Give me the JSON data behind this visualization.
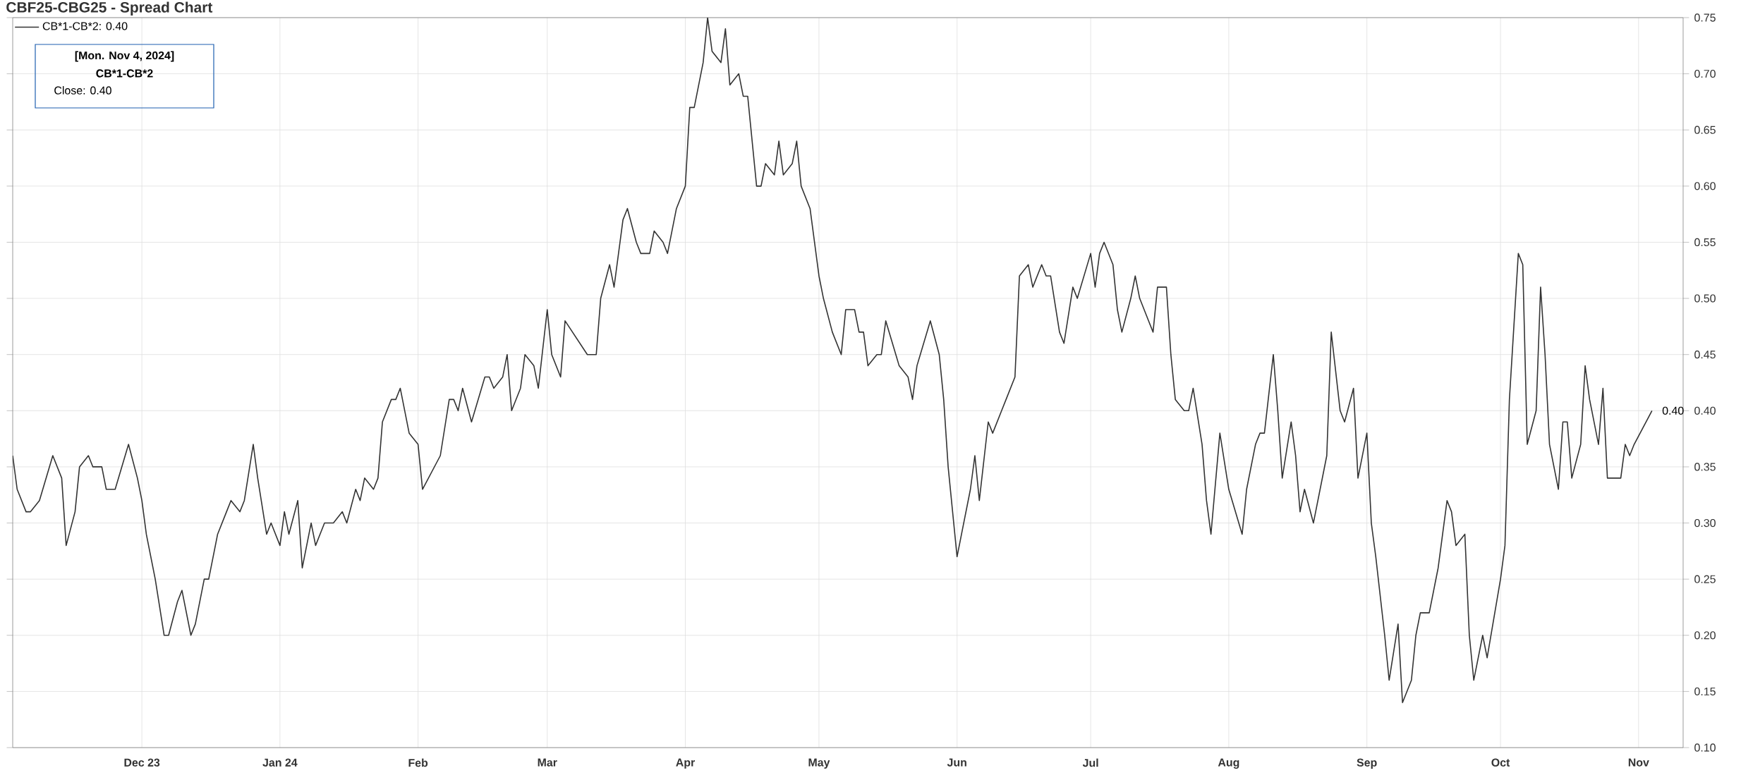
{
  "chart_data": {
    "type": "line",
    "title": "CBF25-CBG25 - Spread Chart",
    "xlim": [
      "2023-11-02",
      "2024-11-11"
    ],
    "xticks": [
      {
        "value": "2023-12-01",
        "label": "Dec 23"
      },
      {
        "value": "2024-01-01",
        "label": "Jan 24"
      },
      {
        "value": "2024-02-01",
        "label": "Feb"
      },
      {
        "value": "2024-03-01",
        "label": "Mar"
      },
      {
        "value": "2024-04-01",
        "label": "Apr"
      },
      {
        "value": "2024-05-01",
        "label": "May"
      },
      {
        "value": "2024-06-01",
        "label": "Jun"
      },
      {
        "value": "2024-07-01",
        "label": "Jul"
      },
      {
        "value": "2024-08-01",
        "label": "Aug"
      },
      {
        "value": "2024-09-01",
        "label": "Sep"
      },
      {
        "value": "2024-10-01",
        "label": "Oct"
      },
      {
        "value": "2024-11-01",
        "label": "Nov"
      }
    ],
    "ylim": [
      0.1,
      0.75
    ],
    "yticks": [
      {
        "value": 0.1,
        "label": "0.10"
      },
      {
        "value": 0.15,
        "label": "0.15"
      },
      {
        "value": 0.2,
        "label": "0.20"
      },
      {
        "value": 0.25,
        "label": "0.25"
      },
      {
        "value": 0.3,
        "label": "0.30"
      },
      {
        "value": 0.35,
        "label": "0.35"
      },
      {
        "value": 0.4,
        "label": "0.40"
      },
      {
        "value": 0.45,
        "label": "0.45"
      },
      {
        "value": 0.5,
        "label": "0.50"
      },
      {
        "value": 0.55,
        "label": "0.55"
      },
      {
        "value": 0.6,
        "label": "0.60"
      },
      {
        "value": 0.65,
        "label": "0.65"
      },
      {
        "value": 0.7,
        "label": "0.70"
      },
      {
        "value": 0.75,
        "label": "0.75"
      }
    ],
    "grid": true,
    "legend": "top left",
    "marker": "none",
    "line_style": "solid",
    "annotations": [
      "[Mon. Nov 4, 2024]",
      "CB*1-CB*2",
      "Close: 0.40",
      {
        "text": "0.40",
        "x": "2024-11-04",
        "y": 0.4
      }
    ],
    "series": [
      {
        "name": "CB*1-CB*2: 0.40",
        "color": "#333333",
        "x": [
          "2023-11-02",
          "2023-11-03",
          "2023-11-05",
          "2023-11-06",
          "2023-11-08",
          "2023-11-11",
          "2023-11-13",
          "2023-11-14",
          "2023-11-16",
          "2023-11-17",
          "2023-11-19",
          "2023-11-20",
          "2023-11-22",
          "2023-11-23",
          "2023-11-25",
          "2023-11-28",
          "2023-11-30",
          "2023-12-01",
          "2023-12-02",
          "2023-12-04",
          "2023-12-06",
          "2023-12-07",
          "2023-12-09",
          "2023-12-10",
          "2023-12-12",
          "2023-12-13",
          "2023-12-15",
          "2023-12-16",
          "2023-12-18",
          "2023-12-20",
          "2023-12-21",
          "2023-12-23",
          "2023-12-24",
          "2023-12-26",
          "2023-12-27",
          "2023-12-29",
          "2023-12-30",
          "2024-01-01",
          "2024-01-02",
          "2024-01-03",
          "2024-01-05",
          "2024-01-06",
          "2024-01-08",
          "2024-01-09",
          "2024-01-11",
          "2024-01-13",
          "2024-01-15",
          "2024-01-16",
          "2024-01-18",
          "2024-01-19",
          "2024-01-20",
          "2024-01-22",
          "2024-01-23",
          "2024-01-24",
          "2024-01-26",
          "2024-01-27",
          "2024-01-28",
          "2024-01-30",
          "2024-02-01",
          "2024-02-02",
          "2024-02-06",
          "2024-02-08",
          "2024-02-09",
          "2024-02-10",
          "2024-02-11",
          "2024-02-13",
          "2024-02-16",
          "2024-02-17",
          "2024-02-18",
          "2024-02-20",
          "2024-02-21",
          "2024-02-22",
          "2024-02-24",
          "2024-02-25",
          "2024-02-27",
          "2024-02-28",
          "2024-03-01",
          "2024-03-02",
          "2024-03-04",
          "2024-03-05",
          "2024-03-10",
          "2024-03-12",
          "2024-03-13",
          "2024-03-15",
          "2024-03-16",
          "2024-03-18",
          "2024-03-19",
          "2024-03-21",
          "2024-03-22",
          "2024-03-24",
          "2024-03-25",
          "2024-03-27",
          "2024-03-28",
          "2024-03-30",
          "2024-04-01",
          "2024-04-02",
          "2024-04-03",
          "2024-04-05",
          "2024-04-06",
          "2024-04-07",
          "2024-04-09",
          "2024-04-10",
          "2024-04-11",
          "2024-04-13",
          "2024-04-14",
          "2024-04-15",
          "2024-04-17",
          "2024-04-18",
          "2024-04-19",
          "2024-04-21",
          "2024-04-22",
          "2024-04-23",
          "2024-04-25",
          "2024-04-26",
          "2024-04-27",
          "2024-04-29",
          "2024-05-01",
          "2024-05-02",
          "2024-05-04",
          "2024-05-06",
          "2024-05-07",
          "2024-05-09",
          "2024-05-10",
          "2024-05-11",
          "2024-05-12",
          "2024-05-14",
          "2024-05-15",
          "2024-05-16",
          "2024-05-19",
          "2024-05-21",
          "2024-05-22",
          "2024-05-23",
          "2024-05-26",
          "2024-05-28",
          "2024-05-29",
          "2024-05-30",
          "2024-06-01",
          "2024-06-02",
          "2024-06-04",
          "2024-06-05",
          "2024-06-06",
          "2024-06-08",
          "2024-06-09",
          "2024-06-11",
          "2024-06-12",
          "2024-06-14",
          "2024-06-15",
          "2024-06-17",
          "2024-06-18",
          "2024-06-20",
          "2024-06-21",
          "2024-06-22",
          "2024-06-24",
          "2024-06-25",
          "2024-06-27",
          "2024-06-28",
          "2024-07-01",
          "2024-07-02",
          "2024-07-03",
          "2024-07-04",
          "2024-07-06",
          "2024-07-07",
          "2024-07-08",
          "2024-07-10",
          "2024-07-11",
          "2024-07-12",
          "2024-07-14",
          "2024-07-15",
          "2024-07-16",
          "2024-07-18",
          "2024-07-19",
          "2024-07-20",
          "2024-07-22",
          "2024-07-23",
          "2024-07-24",
          "2024-07-26",
          "2024-07-27",
          "2024-07-28",
          "2024-07-30",
          "2024-08-01",
          "2024-08-04",
          "2024-08-05",
          "2024-08-07",
          "2024-08-08",
          "2024-08-09",
          "2024-08-11",
          "2024-08-12",
          "2024-08-13",
          "2024-08-15",
          "2024-08-16",
          "2024-08-17",
          "2024-08-18",
          "2024-08-20",
          "2024-08-23",
          "2024-08-24",
          "2024-08-26",
          "2024-08-27",
          "2024-08-29",
          "2024-08-30",
          "2024-09-01",
          "2024-09-02",
          "2024-09-03",
          "2024-09-05",
          "2024-09-06",
          "2024-09-08",
          "2024-09-09",
          "2024-09-11",
          "2024-09-12",
          "2024-09-13",
          "2024-09-15",
          "2024-09-17",
          "2024-09-19",
          "2024-09-20",
          "2024-09-21",
          "2024-09-23",
          "2024-09-24",
          "2024-09-25",
          "2024-09-27",
          "2024-09-28",
          "2024-10-01",
          "2024-10-02",
          "2024-10-03",
          "2024-10-05",
          "2024-10-06",
          "2024-10-07",
          "2024-10-09",
          "2024-10-10",
          "2024-10-11",
          "2024-10-12",
          "2024-10-14",
          "2024-10-15",
          "2024-10-16",
          "2024-10-17",
          "2024-10-19",
          "2024-10-20",
          "2024-10-21",
          "2024-10-23",
          "2024-10-24",
          "2024-10-25",
          "2024-10-28",
          "2024-10-29",
          "2024-10-30",
          "2024-10-31",
          "2024-11-04"
        ],
        "values": [
          0.36,
          0.33,
          0.31,
          0.31,
          0.32,
          0.36,
          0.34,
          0.28,
          0.31,
          0.35,
          0.36,
          0.35,
          0.35,
          0.33,
          0.33,
          0.37,
          0.34,
          0.32,
          0.29,
          0.25,
          0.2,
          0.2,
          0.23,
          0.24,
          0.2,
          0.21,
          0.25,
          0.25,
          0.29,
          0.31,
          0.32,
          0.31,
          0.32,
          0.37,
          0.34,
          0.29,
          0.3,
          0.28,
          0.31,
          0.29,
          0.32,
          0.26,
          0.3,
          0.28,
          0.3,
          0.3,
          0.31,
          0.3,
          0.33,
          0.32,
          0.34,
          0.33,
          0.34,
          0.39,
          0.41,
          0.41,
          0.42,
          0.38,
          0.37,
          0.33,
          0.36,
          0.41,
          0.41,
          0.4,
          0.42,
          0.39,
          0.43,
          0.43,
          0.42,
          0.43,
          0.45,
          0.4,
          0.42,
          0.45,
          0.44,
          0.42,
          0.49,
          0.45,
          0.43,
          0.48,
          0.45,
          0.45,
          0.5,
          0.53,
          0.51,
          0.57,
          0.58,
          0.55,
          0.54,
          0.54,
          0.56,
          0.55,
          0.54,
          0.58,
          0.6,
          0.67,
          0.67,
          0.71,
          0.75,
          0.72,
          0.71,
          0.74,
          0.69,
          0.7,
          0.68,
          0.68,
          0.6,
          0.6,
          0.62,
          0.61,
          0.64,
          0.61,
          0.62,
          0.64,
          0.6,
          0.58,
          0.52,
          0.5,
          0.47,
          0.45,
          0.49,
          0.49,
          0.47,
          0.47,
          0.44,
          0.45,
          0.45,
          0.48,
          0.44,
          0.43,
          0.41,
          0.44,
          0.48,
          0.45,
          0.41,
          0.35,
          0.27,
          0.29,
          0.33,
          0.36,
          0.32,
          0.39,
          0.38,
          0.4,
          0.41,
          0.43,
          0.52,
          0.53,
          0.51,
          0.53,
          0.52,
          0.52,
          0.47,
          0.46,
          0.51,
          0.5,
          0.54,
          0.51,
          0.54,
          0.55,
          0.53,
          0.49,
          0.47,
          0.5,
          0.52,
          0.5,
          0.48,
          0.47,
          0.51,
          0.51,
          0.45,
          0.41,
          0.4,
          0.4,
          0.42,
          0.37,
          0.32,
          0.29,
          0.38,
          0.33,
          0.29,
          0.33,
          0.37,
          0.38,
          0.38,
          0.45,
          0.4,
          0.34,
          0.39,
          0.36,
          0.31,
          0.33,
          0.3,
          0.36,
          0.47,
          0.4,
          0.39,
          0.42,
          0.34,
          0.38,
          0.3,
          0.27,
          0.2,
          0.16,
          0.21,
          0.14,
          0.16,
          0.2,
          0.22,
          0.22,
          0.26,
          0.32,
          0.31,
          0.28,
          0.29,
          0.2,
          0.16,
          0.2,
          0.18,
          0.25,
          0.28,
          0.41,
          0.54,
          0.53,
          0.37,
          0.4,
          0.51,
          0.45,
          0.37,
          0.33,
          0.39,
          0.39,
          0.34,
          0.37,
          0.44,
          0.41,
          0.37,
          0.42,
          0.34,
          0.34,
          0.37,
          0.36,
          0.37,
          0.4
        ]
      }
    ]
  }
}
